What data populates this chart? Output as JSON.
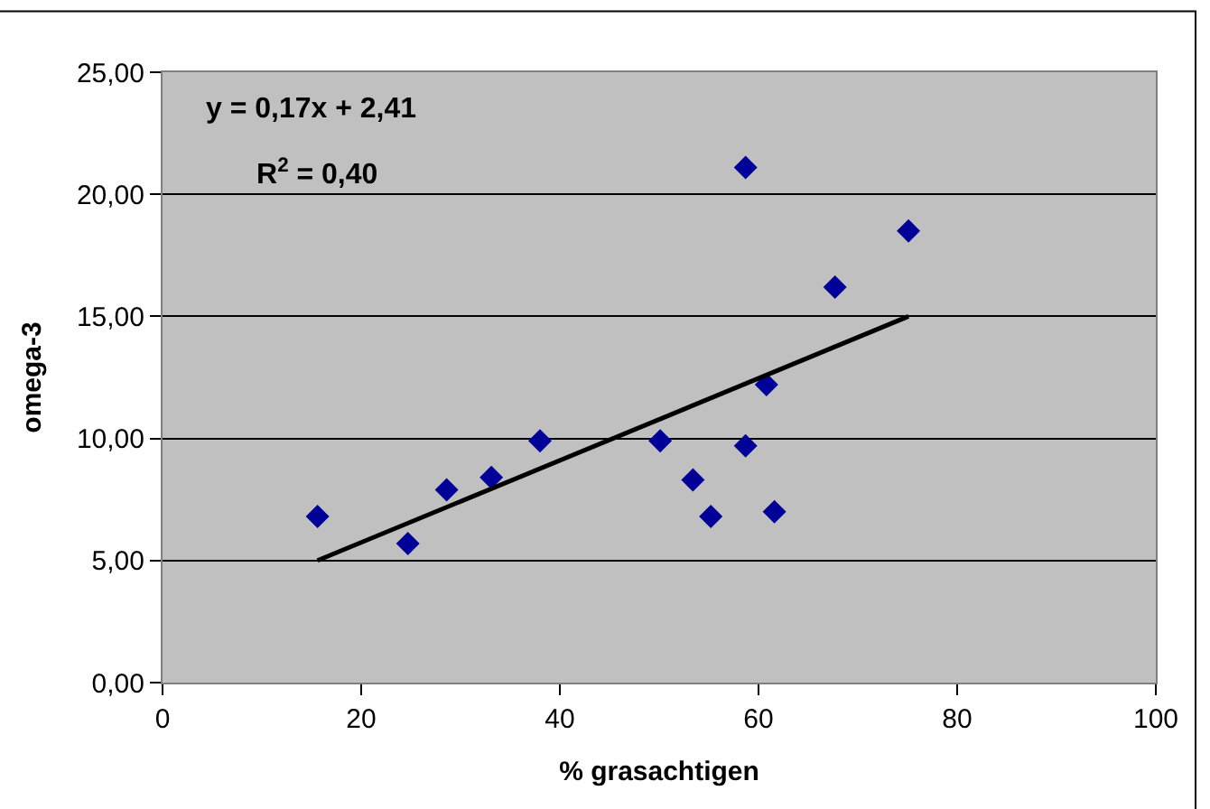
{
  "chart_data": {
    "type": "scatter",
    "xlabel": "% grasachtigen",
    "ylabel": "omega-3",
    "annotations": [
      "y = 0,17x + 2,41",
      "R$^{2}$ = 0,40"
    ],
    "series": [
      {
        "color": "#000099",
        "marker": "diamond",
        "x": [
          15.6,
          24.7,
          28.6,
          33.1,
          38.0,
          50.1,
          53.4,
          55.2,
          58.7,
          58.7,
          60.8,
          61.6,
          67.7,
          75.1
        ],
        "values": [
          6.8,
          5.7,
          7.9,
          8.4,
          9.9,
          9.9,
          8.3,
          6.8,
          9.7,
          21.1,
          12.2,
          7.0,
          16.2,
          18.5
        ]
      },
      {
        "type": "line",
        "color": "#000000",
        "marker": "none",
        "line_style": "solid",
        "x": [
          15.6,
          75.1
        ],
        "values": [
          5.0,
          15.0
        ]
      }
    ],
    "xlim": [
      0,
      100
    ],
    "xticks": [
      0,
      20,
      40,
      60,
      80,
      100
    ],
    "ylim": [
      0,
      25
    ],
    "yticks": [
      {
        "value": 0,
        "label": "0,00"
      },
      {
        "value": 5,
        "label": "5,00"
      },
      {
        "value": 10,
        "label": "10,00"
      },
      {
        "value": 15,
        "label": "15,00"
      },
      {
        "value": 20,
        "label": "20,00"
      },
      {
        "value": 25,
        "label": "25,00"
      }
    ],
    "grid": "y",
    "legend": false
  }
}
